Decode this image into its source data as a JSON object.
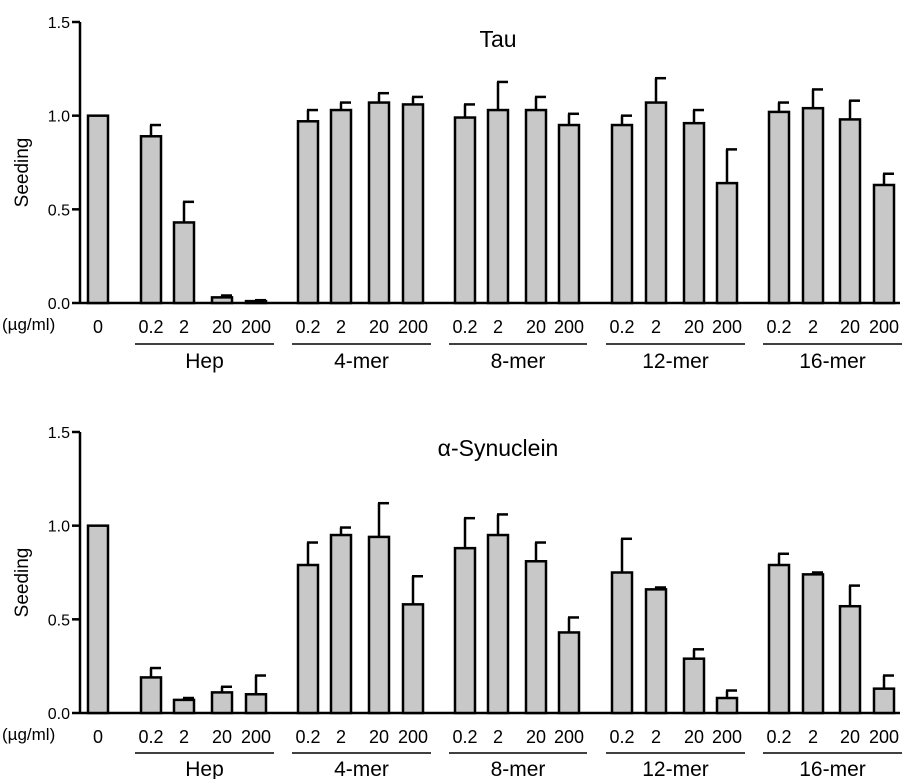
{
  "chart_data": [
    {
      "type": "bar",
      "title": "Tau",
      "ylabel": "Seeding",
      "xlabel": "",
      "ylim": [
        0,
        1.5
      ],
      "yticks": [
        "0.0",
        "0.5",
        "1.0",
        "1.5"
      ],
      "unit_label": "(µg/ml)",
      "groups": [
        {
          "name": "",
          "underline": false,
          "bars": [
            {
              "label": "0",
              "value": 1.0,
              "error": 0
            }
          ]
        },
        {
          "name": "Hep",
          "underline": true,
          "bars": [
            {
              "label": "0.2",
              "value": 0.89,
              "error": 0.06
            },
            {
              "label": "2",
              "value": 0.43,
              "error": 0.11
            },
            {
              "label": "20",
              "value": 0.03,
              "error": 0.01
            },
            {
              "label": "200",
              "value": 0.01,
              "error": 0.005
            }
          ]
        },
        {
          "name": "4-mer",
          "underline": true,
          "bars": [
            {
              "label": "0.2",
              "value": 0.97,
              "error": 0.06
            },
            {
              "label": "2",
              "value": 1.03,
              "error": 0.04
            },
            {
              "label": "20",
              "value": 1.07,
              "error": 0.05
            },
            {
              "label": "200",
              "value": 1.06,
              "error": 0.04
            }
          ]
        },
        {
          "name": "8-mer",
          "underline": true,
          "bars": [
            {
              "label": "0.2",
              "value": 0.99,
              "error": 0.07
            },
            {
              "label": "2",
              "value": 1.03,
              "error": 0.15
            },
            {
              "label": "20",
              "value": 1.03,
              "error": 0.07
            },
            {
              "label": "200",
              "value": 0.95,
              "error": 0.06
            }
          ]
        },
        {
          "name": "12-mer",
          "underline": true,
          "bars": [
            {
              "label": "0.2",
              "value": 0.95,
              "error": 0.05
            },
            {
              "label": "2",
              "value": 1.07,
              "error": 0.13
            },
            {
              "label": "20",
              "value": 0.96,
              "error": 0.07
            },
            {
              "label": "200",
              "value": 0.64,
              "error": 0.18
            }
          ]
        },
        {
          "name": "16-mer",
          "underline": true,
          "bars": [
            {
              "label": "0.2",
              "value": 1.02,
              "error": 0.05
            },
            {
              "label": "2",
              "value": 1.04,
              "error": 0.1
            },
            {
              "label": "20",
              "value": 0.98,
              "error": 0.1
            },
            {
              "label": "200",
              "value": 0.63,
              "error": 0.06
            }
          ]
        }
      ]
    },
    {
      "type": "bar",
      "title": "α-Synuclein",
      "ylabel": "Seeding",
      "xlabel": "",
      "ylim": [
        0,
        1.5
      ],
      "yticks": [
        "0.0",
        "0.5",
        "1.0",
        "1.5"
      ],
      "unit_label": "(µg/ml)",
      "groups": [
        {
          "name": "",
          "underline": false,
          "bars": [
            {
              "label": "0",
              "value": 1.0,
              "error": 0
            }
          ]
        },
        {
          "name": "Hep",
          "underline": true,
          "bars": [
            {
              "label": "0.2",
              "value": 0.19,
              "error": 0.05
            },
            {
              "label": "2",
              "value": 0.07,
              "error": 0.01
            },
            {
              "label": "20",
              "value": 0.11,
              "error": 0.03
            },
            {
              "label": "200",
              "value": 0.1,
              "error": 0.1
            }
          ]
        },
        {
          "name": "4-mer",
          "underline": true,
          "bars": [
            {
              "label": "0.2",
              "value": 0.79,
              "error": 0.12
            },
            {
              "label": "2",
              "value": 0.95,
              "error": 0.04
            },
            {
              "label": "20",
              "value": 0.94,
              "error": 0.18
            },
            {
              "label": "200",
              "value": 0.58,
              "error": 0.15
            }
          ]
        },
        {
          "name": "8-mer",
          "underline": true,
          "bars": [
            {
              "label": "0.2",
              "value": 0.88,
              "error": 0.16
            },
            {
              "label": "2",
              "value": 0.95,
              "error": 0.11
            },
            {
              "label": "20",
              "value": 0.81,
              "error": 0.1
            },
            {
              "label": "200",
              "value": 0.43,
              "error": 0.08
            }
          ]
        },
        {
          "name": "12-mer",
          "underline": true,
          "bars": [
            {
              "label": "0.2",
              "value": 0.75,
              "error": 0.18
            },
            {
              "label": "2",
              "value": 0.66,
              "error": 0.01
            },
            {
              "label": "20",
              "value": 0.29,
              "error": 0.05
            },
            {
              "label": "200",
              "value": 0.08,
              "error": 0.04
            }
          ]
        },
        {
          "name": "16-mer",
          "underline": true,
          "bars": [
            {
              "label": "0.2",
              "value": 0.79,
              "error": 0.06
            },
            {
              "label": "2",
              "value": 0.74,
              "error": 0.01
            },
            {
              "label": "20",
              "value": 0.57,
              "error": 0.11
            },
            {
              "label": "200",
              "value": 0.13,
              "error": 0.07
            }
          ]
        }
      ]
    }
  ],
  "colors": {
    "bar_fill": "#c8c8c8",
    "bar_stroke": "#000000",
    "axis": "#000000"
  }
}
